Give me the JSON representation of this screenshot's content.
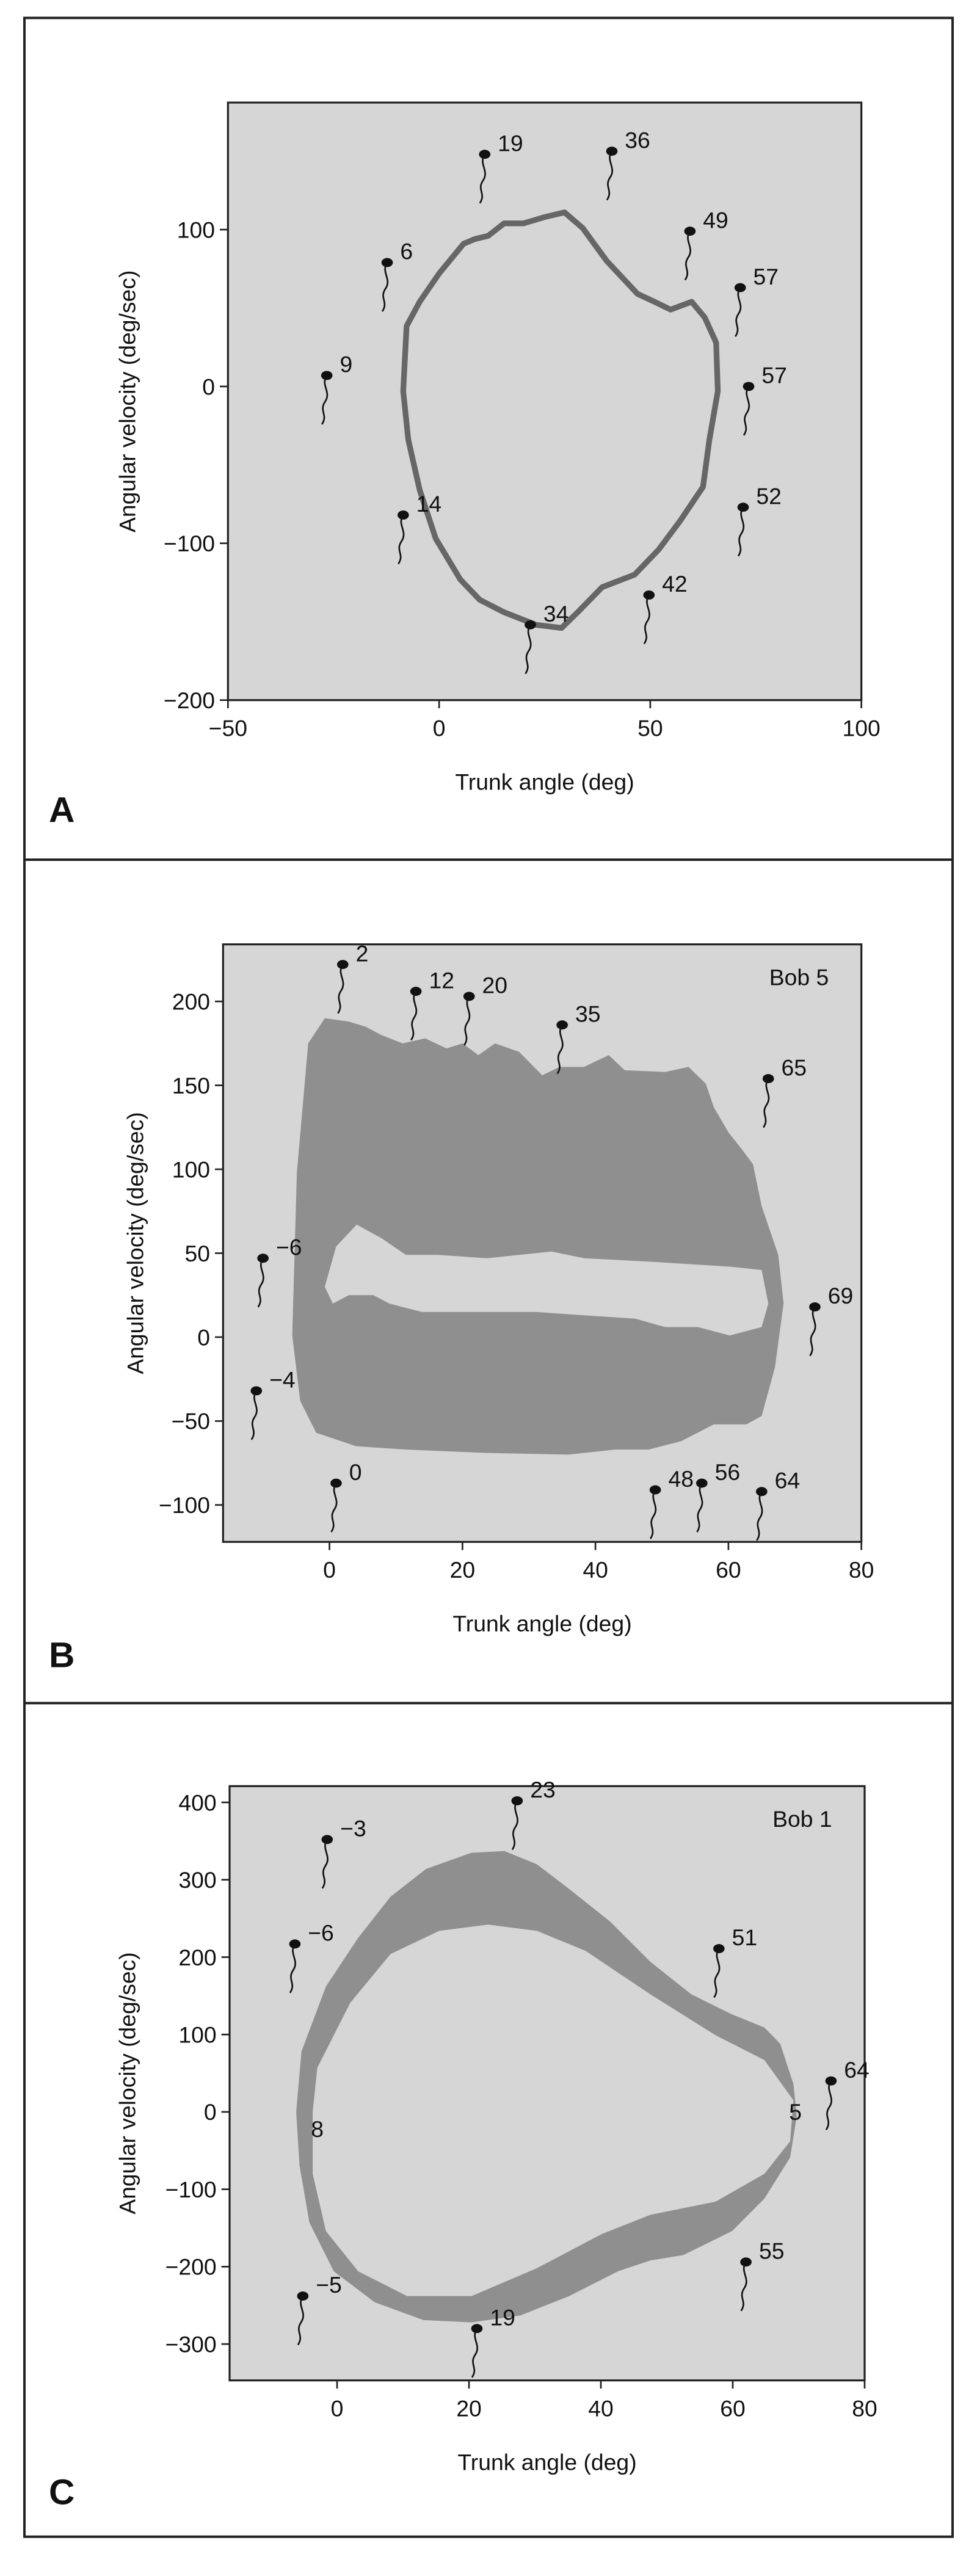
{
  "chart_data": [
    {
      "type": "loop",
      "label": "A",
      "xlabel": "Trunk angle (deg)",
      "ylabel": "Angular velocity (deg/sec)",
      "xlim": [
        -50,
        100
      ],
      "ylim": [
        -200,
        181
      ],
      "xticks": [
        {
          "value": -50,
          "label": "−50"
        },
        0,
        50,
        100
      ],
      "yticks": [
        {
          "value": -200,
          "label": "−200"
        },
        {
          "value": -100,
          "label": "−100"
        },
        0,
        100
      ],
      "background": "#d6d6d6",
      "series": [
        {
          "color": "#666666",
          "x": [
            -8.5,
            -7.7,
            -4.6,
            0,
            5.8,
            8.5,
            11.6,
            15.4,
            20,
            25,
            29.7,
            34,
            39.7,
            47,
            51,
            54.8,
            59.8,
            62.9,
            65.6,
            66,
            64,
            62.5,
            57,
            52,
            46.3,
            38.6,
            32.8,
            29,
            23,
            15.4,
            9.6,
            5,
            -0.8,
            -4.6,
            -7.3
          ],
          "y": [
            -3,
            38.5,
            54,
            72,
            91,
            94,
            96,
            104,
            104,
            108,
            111,
            101,
            80,
            59,
            54,
            49,
            54,
            44,
            28,
            -3,
            -34,
            -64,
            -86,
            -104,
            -120,
            -128,
            -144,
            -154,
            -152,
            -144,
            -136,
            -123,
            -97,
            -66,
            -34
          ]
        }
      ],
      "annotations": [
        {
          "text": "19",
          "x": 10.8,
          "y": 148
        },
        {
          "text": "36",
          "x": 40.9,
          "y": 150
        },
        {
          "text": "49",
          "x": 59.4,
          "y": 99
        },
        {
          "text": "57",
          "x": 71.3,
          "y": 63
        },
        {
          "text": "57",
          "x": 73.3,
          "y": 0
        },
        {
          "text": "52",
          "x": 72,
          "y": -77
        },
        {
          "text": "42",
          "x": 49.7,
          "y": -133
        },
        {
          "text": "34",
          "x": 21.6,
          "y": -152
        },
        {
          "text": "14",
          "x": -8.5,
          "y": -82
        },
        {
          "text": "9",
          "x": -26.6,
          "y": 7
        },
        {
          "text": "6",
          "x": -12.3,
          "y": 79
        }
      ]
    },
    {
      "type": "band",
      "label": "B",
      "title": "Bob 5",
      "xlabel": "Trunk angle (deg)",
      "ylabel": "Angular velocity (deg/sec)",
      "xlim": [
        -16,
        80
      ],
      "ylim": [
        -122,
        234
      ],
      "xticks": [
        0,
        20,
        40,
        60,
        80
      ],
      "yticks": [
        {
          "value": -100,
          "label": "−100"
        },
        {
          "value": -50,
          "label": "−50"
        },
        0,
        50,
        100,
        150,
        200
      ],
      "background": "#d6d6d6",
      "series": [
        {
          "color": "#8f8f8f",
          "x": [
            -5.6,
            -4.9,
            -3.2,
            -0.7,
            2.9,
            5.4,
            7.8,
            11,
            14.4,
            17.6,
            20,
            22.4,
            24.9,
            28.5,
            32,
            34.6,
            38.3,
            42,
            44.4,
            50.5,
            54,
            56.6,
            57.8,
            60,
            62,
            63.7,
            65,
            67.5,
            68.3,
            67,
            65,
            62.7,
            57.8,
            52.9,
            48,
            43,
            35.9,
            23.7,
            11.5,
            4,
            -2,
            -4.4
          ],
          "y": [
            1,
            98,
            175,
            190,
            188,
            185,
            180,
            175,
            178,
            172,
            175,
            168,
            175,
            170,
            156,
            161,
            161,
            168,
            159,
            158,
            161,
            151,
            137,
            122,
            112,
            103,
            78,
            49,
            20,
            -18,
            -47,
            -52,
            -52,
            -62,
            -67,
            -67,
            -70,
            -69,
            -67,
            -65,
            -57,
            -38
          ]
        },
        {
          "color": "#d6d6d6",
          "x": [
            -0.7,
            1,
            4.1,
            7.8,
            11.5,
            16.3,
            23.7,
            33.4,
            38.3,
            48,
            60.2,
            65,
            66,
            65,
            60.2,
            55.4,
            50.5,
            46,
            38.3,
            31,
            23.7,
            13.9,
            9,
            6.6,
            2.9,
            0.5
          ],
          "y": [
            30,
            54,
            67,
            59,
            49,
            49,
            47,
            51,
            47,
            45,
            42,
            40,
            20,
            6,
            1,
            6,
            6,
            11,
            13,
            15,
            15,
            15,
            20,
            25,
            25,
            20
          ]
        }
      ],
      "annotations": [
        {
          "text": "2",
          "x": 2,
          "y": 222
        },
        {
          "text": "12",
          "x": 13,
          "y": 206
        },
        {
          "text": "20",
          "x": 21,
          "y": 203
        },
        {
          "text": "35",
          "x": 35,
          "y": 186
        },
        {
          "text": "65",
          "x": 66,
          "y": 154
        },
        {
          "text": "69",
          "x": 73,
          "y": 18
        },
        {
          "text": "64",
          "x": 65,
          "y": -92
        },
        {
          "text": "56",
          "x": 56,
          "y": -87
        },
        {
          "text": "48",
          "x": 49,
          "y": -91
        },
        {
          "text": "0",
          "x": 1,
          "y": -87
        },
        {
          "text": "−4",
          "x": -11,
          "y": -32
        },
        {
          "text": "−6",
          "x": -10,
          "y": 47
        }
      ]
    },
    {
      "type": "band",
      "label": "C",
      "title": "Bob 1",
      "xlabel": "Trunk angle (deg)",
      "ylabel": "Angular velocity (deg/sec)",
      "xlim": [
        -16.3,
        80
      ],
      "ylim": [
        -347,
        421
      ],
      "xticks": [
        0,
        20,
        40,
        60,
        80
      ],
      "yticks": [
        {
          "value": -300,
          "label": "−300"
        },
        {
          "value": -200,
          "label": "−200"
        },
        {
          "value": -100,
          "label": "−100"
        },
        0,
        100,
        200,
        300,
        400
      ],
      "background": "#d6d6d6",
      "series": [
        {
          "color": "#8f8f8f",
          "x": [
            -6.2,
            -5.4,
            -1.7,
            3.2,
            8.1,
            13.5,
            20.4,
            25.4,
            30.3,
            35.2,
            41.4,
            47.5,
            53.7,
            59.9,
            64.8,
            67.2,
            69.2,
            69.7,
            68.7,
            64.8,
            59.9,
            52.5,
            47.5,
            42.6,
            35.2,
            27.8,
            20.4,
            13.1,
            5.7,
            -0.5,
            -4.2,
            -5.7
          ],
          "y": [
            0,
            78,
            162,
            225,
            278,
            314,
            335,
            337,
            320,
            288,
            246,
            194,
            152,
            126,
            109,
            88,
            36,
            -6,
            -59,
            -112,
            -154,
            -185,
            -192,
            -206,
            -238,
            -263,
            -272,
            -269,
            -246,
            -206,
            -143,
            -69
          ]
        },
        {
          "color": "#d6d6d6",
          "x": [
            -3.7,
            -3,
            2,
            8.1,
            15.5,
            22.9,
            30.3,
            37.7,
            47.5,
            57.4,
            64.8,
            69.2,
            68.7,
            64.8,
            57.4,
            47.5,
            40.1,
            30.3,
            20.4,
            10.6,
            3.2,
            -1.7,
            -3.7
          ],
          "y": [
            0,
            57,
            141,
            204,
            234,
            242,
            234,
            208,
            152,
            99,
            67,
            15,
            -38,
            -80,
            -116,
            -133,
            -158,
            -202,
            -238,
            -238,
            -206,
            -154,
            -80
          ]
        }
      ],
      "annotations": [
        {
          "text": "23",
          "x": 27.3,
          "y": 402
        },
        {
          "text": "−3",
          "x": -1.5,
          "y": 352
        },
        {
          "text": "−6",
          "x": -6.4,
          "y": 217
        },
        {
          "text": "51",
          "x": 57.9,
          "y": 211
        },
        {
          "text": "64",
          "x": 74.9,
          "y": 40
        },
        {
          "text": "55",
          "x": 62,
          "y": -194
        },
        {
          "text": "19",
          "x": 21.2,
          "y": -280
        },
        {
          "text": "−5",
          "x": -5.2,
          "y": -238
        }
      ],
      "labels": [
        {
          "text": "8",
          "x": -3,
          "y": -22
        },
        {
          "text": "5",
          "x": 69.5,
          "y": 0
        }
      ]
    }
  ]
}
